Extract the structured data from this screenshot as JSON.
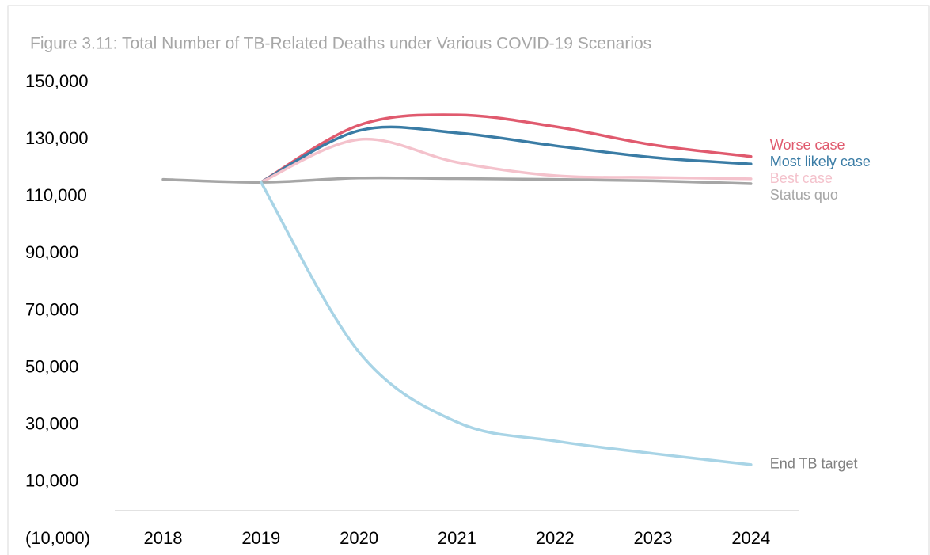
{
  "chart_data": {
    "type": "line",
    "title": "Figure 3.11: Total Number of TB-Related Deaths under Various COVID-19 Scenarios",
    "categories": [
      "2018",
      "2019",
      "2020",
      "2021",
      "2022",
      "2023",
      "2024"
    ],
    "series": [
      {
        "name": "Worse case",
        "color": "#e05a6e",
        "label_color": "#e05a6e",
        "values": [
          null,
          115000,
          135000,
          138600,
          134500,
          128100,
          124000
        ]
      },
      {
        "name": "Most likely case",
        "color": "#3a7ca5",
        "label_color": "#3a7ca5",
        "values": [
          null,
          115000,
          133100,
          132300,
          127800,
          123700,
          121400
        ]
      },
      {
        "name": "Best case",
        "color": "#f4c2cc",
        "label_color": "#f4c2cc",
        "values": [
          null,
          115000,
          130000,
          122000,
          117300,
          116700,
          116200
        ]
      },
      {
        "name": "Status quo",
        "color": "#a6a6a6",
        "label_color": "#a6a6a6",
        "values": [
          116000,
          115000,
          116500,
          116300,
          116000,
          115500,
          114500
        ]
      },
      {
        "name": "End TB target",
        "color": "#a8d4e6",
        "label_color": "#808080",
        "values": [
          null,
          115000,
          55500,
          31000,
          24400,
          20000,
          16100
        ]
      }
    ],
    "ylim": [
      -10000,
      150000
    ],
    "yticks": [
      {
        "value": -10000,
        "label": "(10,000)"
      },
      {
        "value": 10000,
        "label": "10,000"
      },
      {
        "value": 30000,
        "label": "30,000"
      },
      {
        "value": 50000,
        "label": "50,000"
      },
      {
        "value": 70000,
        "label": "70,000"
      },
      {
        "value": 90000,
        "label": "90,000"
      },
      {
        "value": 110000,
        "label": "110,000"
      },
      {
        "value": 130000,
        "label": "130,000"
      },
      {
        "value": 150000,
        "label": "150,000"
      }
    ],
    "grid": false
  }
}
